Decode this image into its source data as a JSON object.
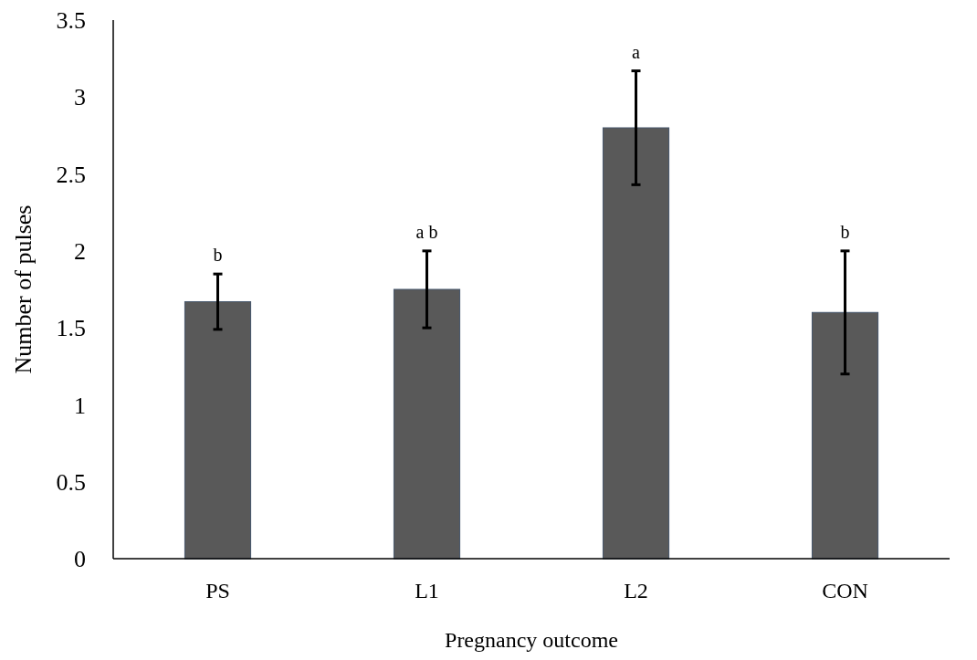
{
  "chart_data": {
    "type": "bar",
    "xlabel": "Pregnancy outcome",
    "ylabel": "Number of pulses",
    "categories": [
      "PS",
      "L1",
      "L2",
      "CON"
    ],
    "values": [
      1.67,
      1.75,
      2.8,
      1.6
    ],
    "errors": [
      0.18,
      0.25,
      0.37,
      0.4
    ],
    "color": "#595959",
    "ylim": [
      0,
      3.5
    ],
    "yticks": [
      0,
      0.5,
      1,
      1.5,
      2,
      2.5,
      3,
      3.5
    ],
    "grid": false,
    "annotations": [
      "b",
      "a b",
      "a",
      "b"
    ]
  }
}
